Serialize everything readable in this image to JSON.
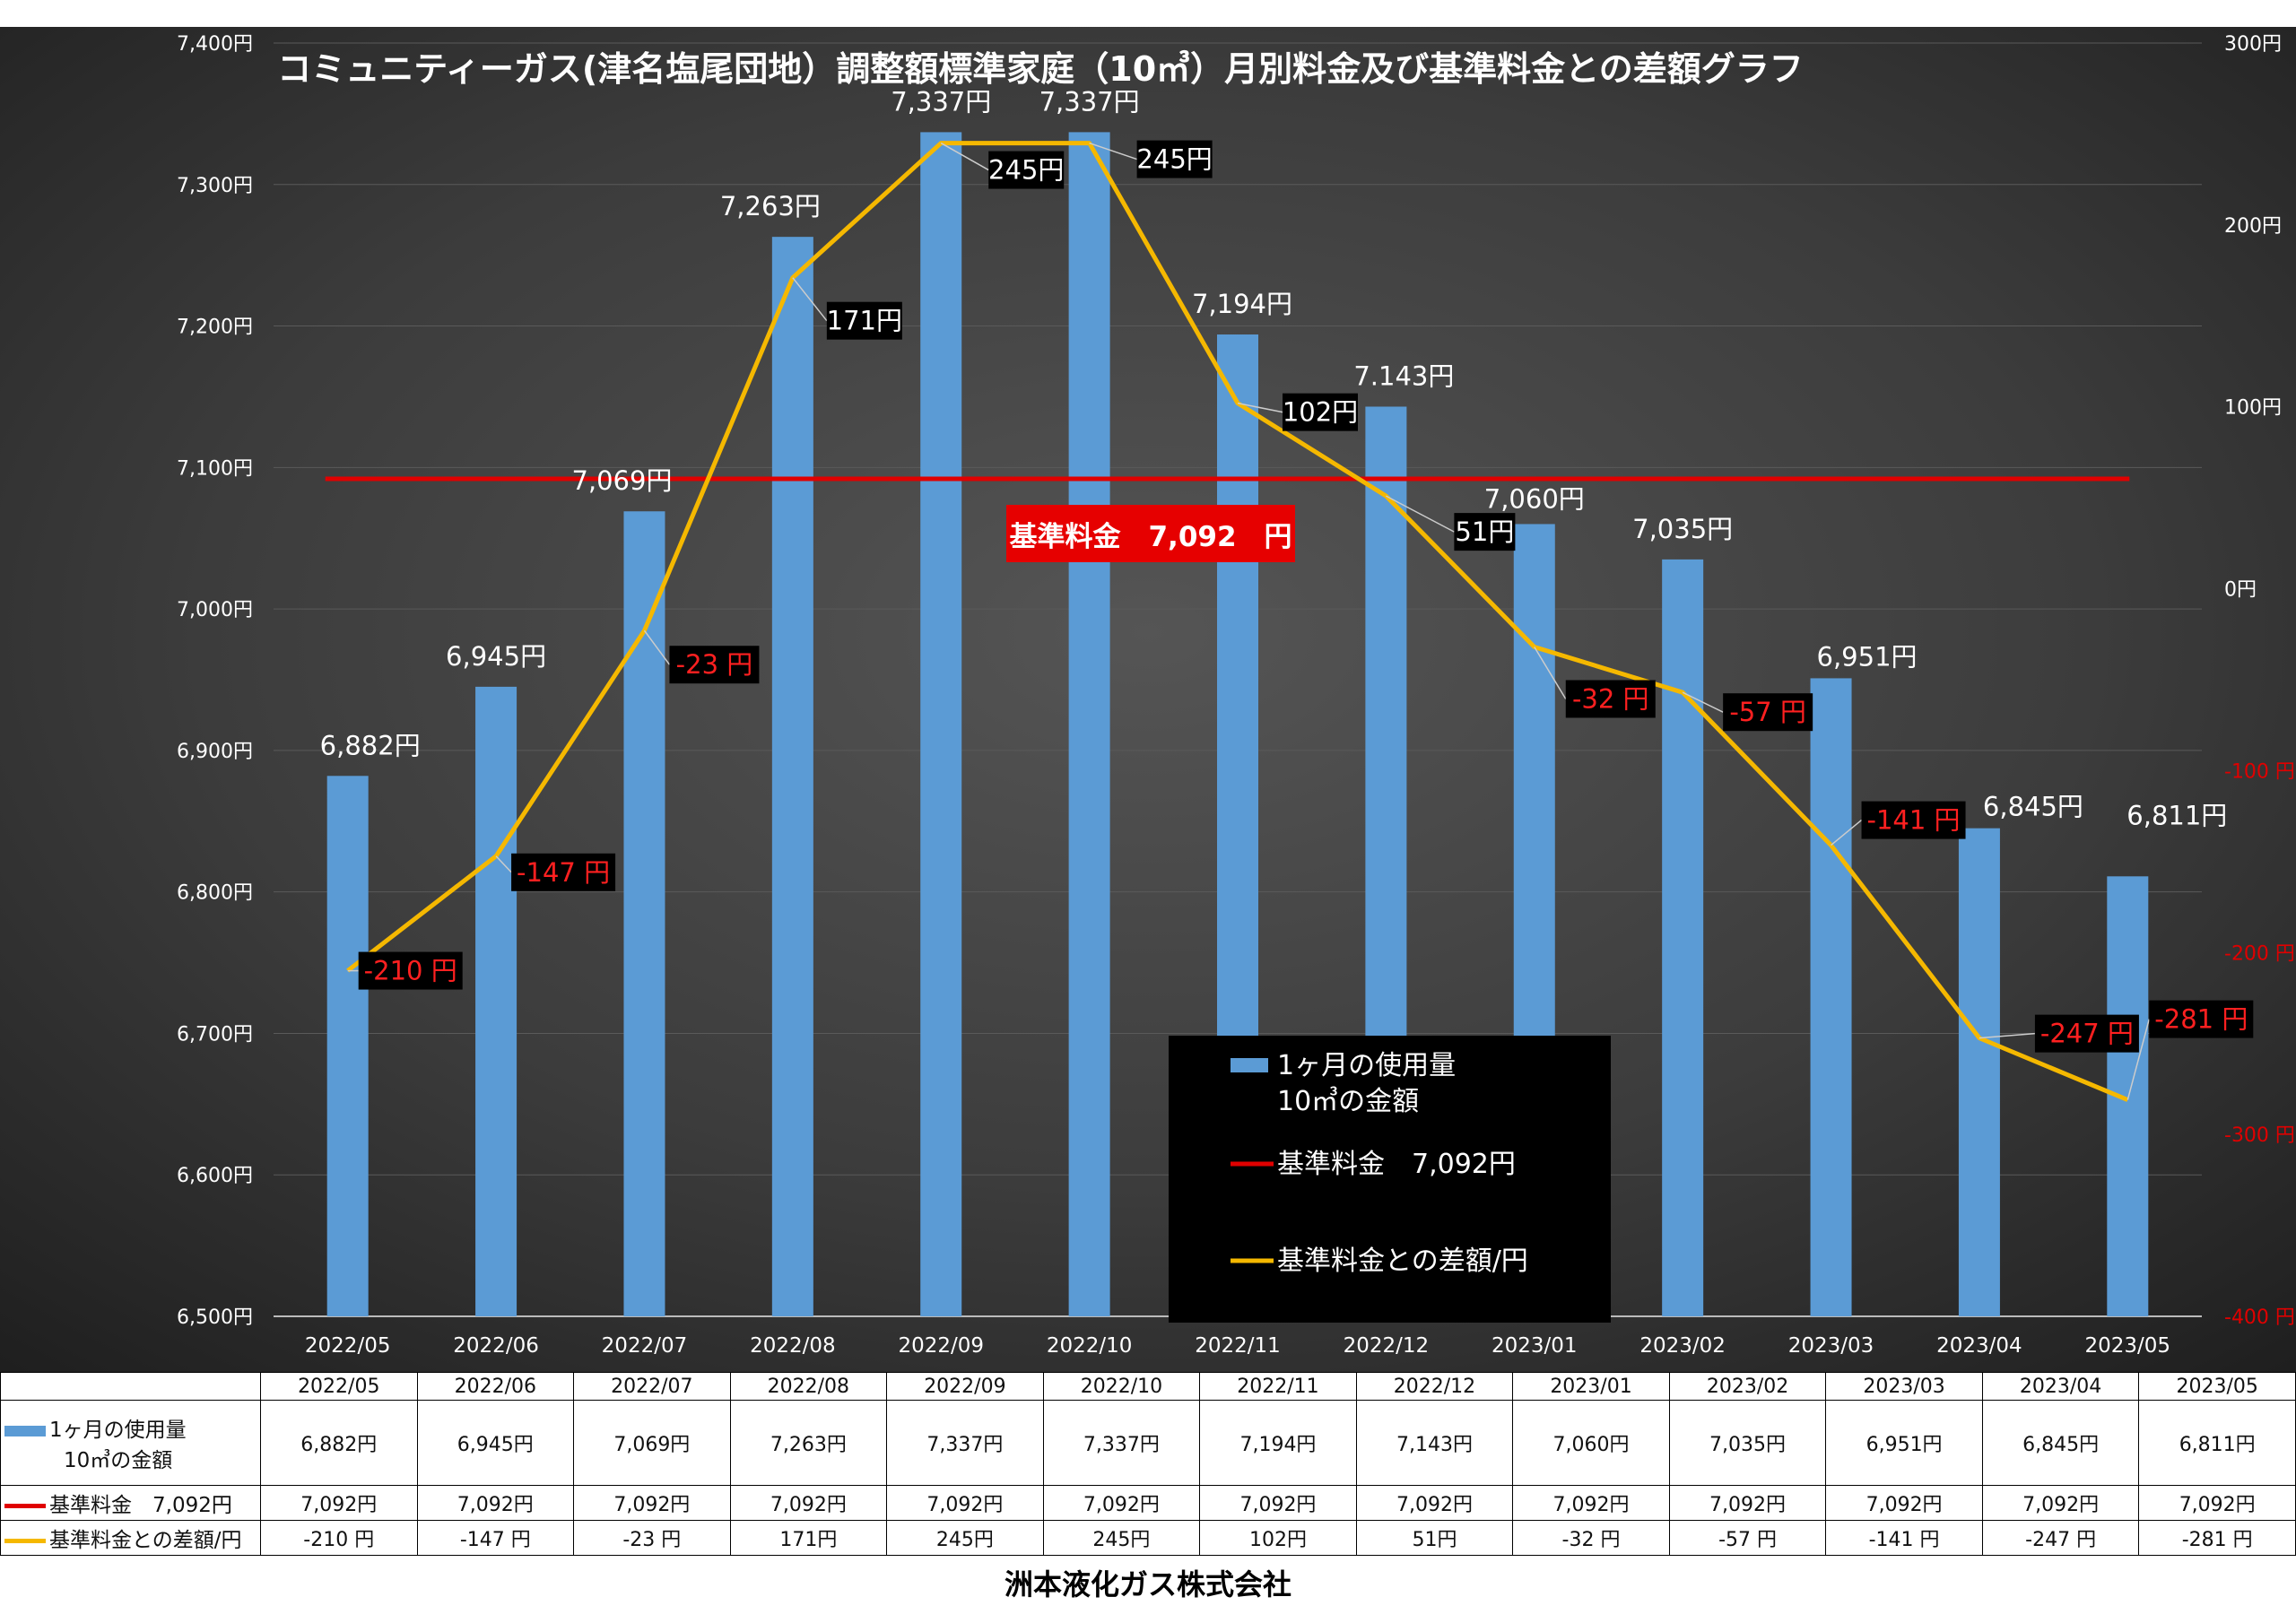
{
  "company": "洲本液化ガス株式会社",
  "chart_data": {
    "type": "bar",
    "title": "コミュニティーガス(津名塩尾団地）調整額標準家庭（10㎥）月別料金及び基準料金との差額グラフ",
    "categories": [
      "2022/05",
      "2022/06",
      "2022/07",
      "2022/08",
      "2022/09",
      "2022/10",
      "2022/11",
      "2022/12",
      "2023/01",
      "2023/02",
      "2023/03",
      "2023/04",
      "2023/05"
    ],
    "series": [
      {
        "name": "1ヶ月の使用量 10㎥の金額",
        "legend_lines": [
          "1ヶ月の使用量",
          "10㎥の金額"
        ],
        "type": "bar",
        "axis": "left",
        "color": "#5b9bd5",
        "values": [
          6882,
          6945,
          7069,
          7263,
          7337,
          7337,
          7194,
          7143,
          7060,
          7035,
          6951,
          6845,
          6811
        ],
        "labels": [
          "6,882円",
          "6,945円",
          "7,069円",
          "7,263円",
          "7,337円",
          "7,337円",
          "7,194円",
          "7.143円",
          "7,060円",
          "7,035円",
          "6,951円",
          "6,845円",
          "6,811円"
        ],
        "table_labels": [
          "6,882円",
          "6,945円",
          "7,069円",
          "7,263円",
          "7,337円",
          "7,337円",
          "7,194円",
          "7,143円",
          "7,060円",
          "7,035円",
          "6,951円",
          "6,845円",
          "6,811円"
        ]
      },
      {
        "name": "基準料金 7,092円",
        "legend_label": "基準料金　7,092円",
        "table_label": "基準料金　7,092円",
        "type": "line",
        "axis": "left",
        "color": "#e00000",
        "values": [
          7092,
          7092,
          7092,
          7092,
          7092,
          7092,
          7092,
          7092,
          7092,
          7092,
          7092,
          7092,
          7092
        ],
        "table_labels": [
          "7,092円",
          "7,092円",
          "7,092円",
          "7,092円",
          "7,092円",
          "7,092円",
          "7,092円",
          "7,092円",
          "7,092円",
          "7,092円",
          "7,092円",
          "7,092円",
          "7,092円"
        ]
      },
      {
        "name": "基準料金との差額/円",
        "type": "line",
        "axis": "right",
        "color": "#f5b800",
        "values": [
          -210,
          -147,
          -23,
          171,
          245,
          245,
          102,
          51,
          -32,
          -57,
          -141,
          -247,
          -281
        ],
        "labels": [
          "-210 円",
          "-147 円",
          "-23 円",
          "171円",
          "245円",
          "245円",
          "102円",
          "51円",
          "-32 円",
          "-57 円",
          "-141 円",
          "-247 円",
          "-281 円"
        ],
        "table_labels": [
          "-210 円",
          "-147 円",
          "-23 円",
          "171円",
          "245円",
          "245円",
          "102円",
          "51円",
          "-32 円",
          "-57 円",
          "-141 円",
          "-247 円",
          "-281 円"
        ]
      }
    ],
    "y_left": {
      "min": 6500,
      "max": 7400,
      "step": 100,
      "ticks": [
        "6,500円",
        "6,600円",
        "6,700円",
        "6,800円",
        "6,900円",
        "7,000円",
        "7,100円",
        "7,200円",
        "7,300円",
        "7,400円"
      ]
    },
    "y_right": {
      "min": -400,
      "max": 300,
      "step": 100,
      "ticks": [
        "-400 円",
        "-300 円",
        "-200 円",
        "-100 円",
        "0円",
        "100円",
        "200円",
        "300円"
      ]
    },
    "annotation": "基準料金　7,092　円",
    "grid": true,
    "legend_position": "bottom-center"
  }
}
